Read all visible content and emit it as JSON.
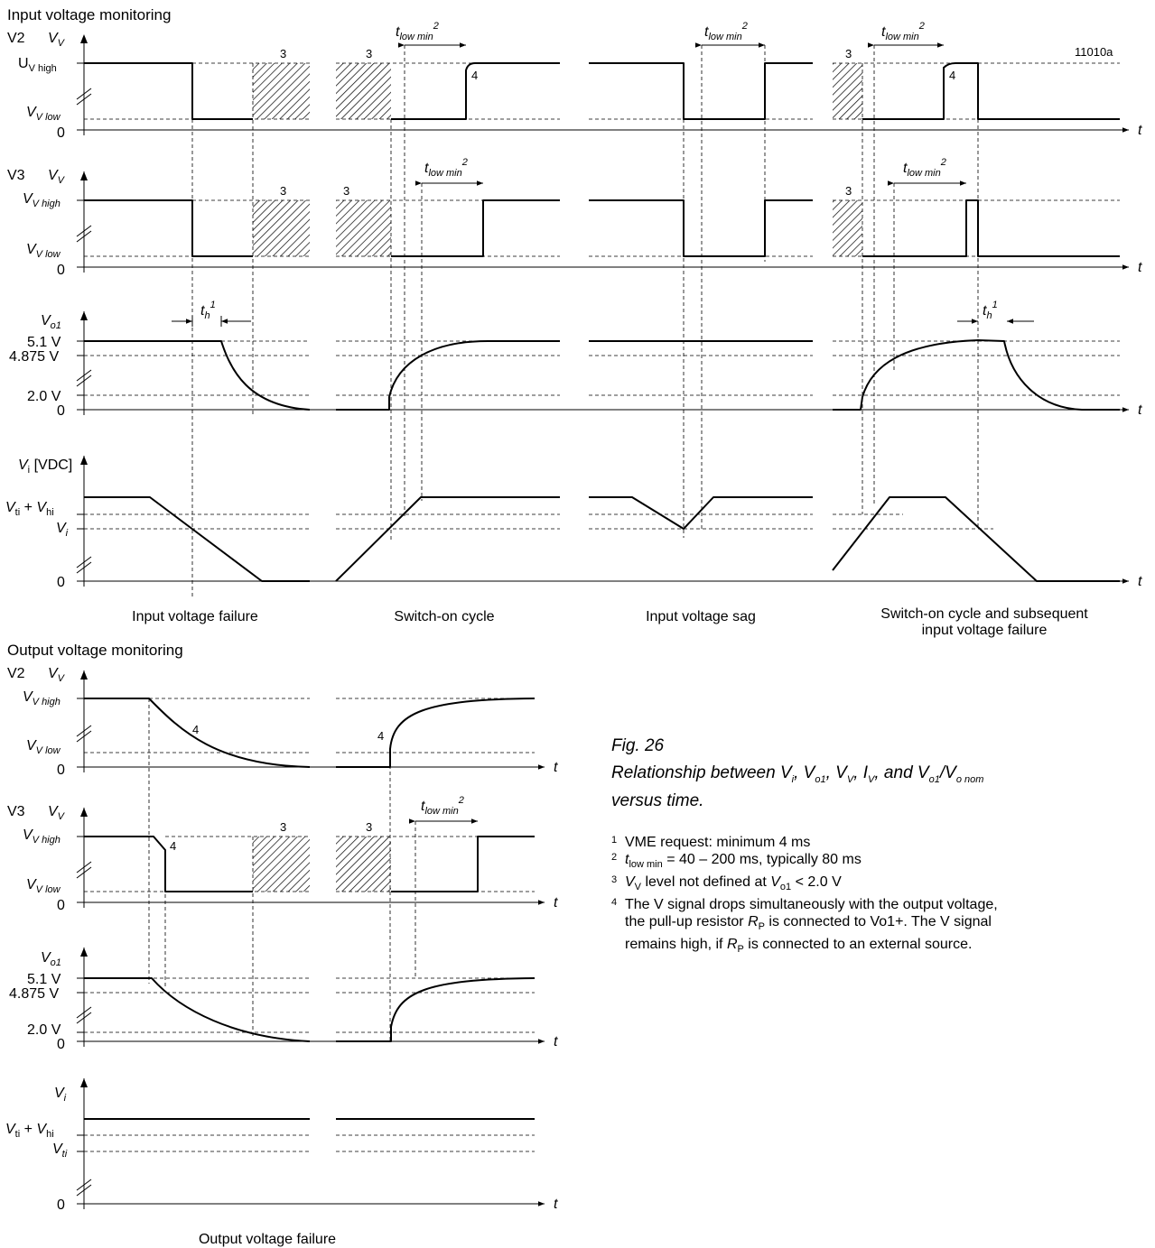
{
  "sections": {
    "input_title": "Input voltage monitoring",
    "output_title": "Output voltage monitoring"
  },
  "figure_id": "11010a",
  "axis_labels": {
    "v2": "V2",
    "v3": "V3",
    "V": "V",
    "subV": "V",
    "u_high": "U",
    "v_high_sub": "V high",
    "v_low_sub": "V low",
    "zero": "0",
    "t": "t",
    "vo1": "V",
    "vo1_sub": "o1",
    "val_51": "5.1 V",
    "val_4875": "4.875 V",
    "val_20": "2.0 V",
    "vi_vdc": "V",
    "vi_vdc_sub": "i",
    "vi_vdc_unit": " [VDC]",
    "vti": "V",
    "vti_sub": "ti",
    "plus": " + ",
    "vhi": "V",
    "vhi_sub": "hi",
    "vi": "V",
    "vi_sub": "i"
  },
  "annotations": {
    "tlow": "t",
    "tlow_sub": "low min",
    "tlow_sup": "2",
    "th": "t",
    "th_sub": "h",
    "th_sup": "1",
    "note3": "3",
    "note4": "4"
  },
  "column_labels": {
    "failure": "Input voltage failure",
    "switch_on": "Switch-on cycle",
    "sag": "Input voltage sag",
    "switch_fail_1": "Switch-on cycle and subsequent",
    "switch_fail_2": "input voltage failure",
    "output_failure": "Output voltage failure"
  },
  "caption": {
    "fig": "Fig. 26",
    "line1_a": "Relationship between V",
    "sub_i": "i",
    "sep": ", ",
    "vo1_v": "V",
    "sub_o1": "o1",
    "vv_v": "V",
    "sub_V": "V",
    "iv_i": "I",
    "line1_end": ", and ",
    "ratio_v": "V",
    "ratio_sub1": "o1",
    "slash": "/",
    "ratio_v2": "V",
    "ratio_sub2": "o nom",
    "line2": "versus time."
  },
  "notes": [
    {
      "num": "1",
      "text": "VME request: minimum 4 ms"
    },
    {
      "num": "2",
      "pre": "t",
      "pre_sub": "low min",
      "text": " = 40 – 200 ms, typically 80 ms"
    },
    {
      "num": "3",
      "pre": "V",
      "pre_sub": "V",
      "text": " level not defined at ",
      "mid": "V",
      "mid_sub": "o1",
      "post": " < 2.0 V"
    },
    {
      "num": "4",
      "a": "The V signal drops simultaneously with the output voltage,",
      "b_pre": "the pull-up resistor ",
      "b_r": "R",
      "b_rsub": "P",
      "b_post": " is connected to Vo1+. The V signal",
      "c_pre": "remains high, if ",
      "c_r": "R",
      "c_rsub": "P",
      "c_post": " is connected to an external source."
    }
  ]
}
